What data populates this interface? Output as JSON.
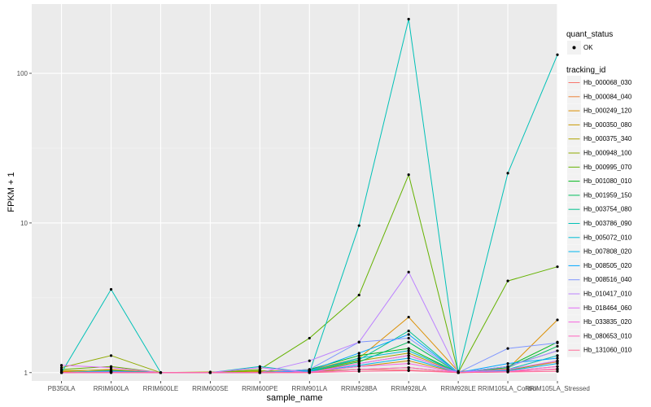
{
  "chart_data": {
    "type": "line",
    "y_scale": "log10",
    "ylim": [
      0.88,
      290
    ],
    "xlabel": "sample_name",
    "ylabel": "FPKM + 1",
    "y_ticks": [
      {
        "value": 1,
        "label": "1"
      },
      {
        "value": 10,
        "label": "10"
      },
      {
        "value": 100,
        "label": "100"
      }
    ],
    "categories": [
      "PB350LA",
      "RRIM600LA",
      "RRIM600LE",
      "RRIM600SE",
      "RRIM600PE",
      "RRIM901LA",
      "RRIM928BA",
      "RRIM928LA",
      "RRIM928LE",
      "RRIM105LA_Control",
      "RRIM105LA_Stressed"
    ],
    "legend": {
      "points_title": "quant_status",
      "points_label": "OK",
      "lines_title": "tracking_id"
    },
    "series": [
      {
        "name": "Hb_000068_030",
        "color": "#F8766D",
        "values": [
          1.0,
          1.01,
          1.0,
          1.0,
          1.0,
          1.01,
          1.05,
          1.04,
          1.0,
          1.02,
          1.05
        ]
      },
      {
        "name": "Hb_000084_040",
        "color": "#EC8239",
        "values": [
          1.01,
          1.02,
          1.0,
          1.0,
          1.0,
          1.02,
          1.15,
          1.3,
          1.0,
          1.04,
          1.18
        ]
      },
      {
        "name": "Hb_000249_120",
        "color": "#DB8E00",
        "values": [
          1.02,
          1.05,
          1.0,
          1.0,
          1.01,
          1.04,
          1.25,
          2.35,
          1.02,
          1.06,
          2.25
        ]
      },
      {
        "name": "Hb_000350_080",
        "color": "#C79800",
        "values": [
          1.0,
          1.01,
          1.0,
          1.0,
          1.0,
          1.01,
          1.1,
          1.2,
          1.0,
          1.02,
          1.1
        ]
      },
      {
        "name": "Hb_000375_340",
        "color": "#AEA200",
        "values": [
          1.03,
          1.04,
          1.0,
          1.01,
          1.02,
          1.03,
          1.2,
          1.35,
          1.0,
          1.05,
          1.3
        ]
      },
      {
        "name": "Hb_000948_100",
        "color": "#8FAA00",
        "values": [
          1.08,
          1.3,
          1.0,
          1.0,
          1.03,
          1.02,
          1.05,
          1.08,
          1.0,
          1.03,
          1.2
        ]
      },
      {
        "name": "Hb_000995_070",
        "color": "#64B200",
        "values": [
          1.05,
          1.1,
          1.0,
          1.0,
          1.05,
          1.7,
          3.3,
          21.0,
          1.0,
          4.1,
          5.1
        ]
      },
      {
        "name": "Hb_001080_010",
        "color": "#00B81B",
        "values": [
          1.0,
          1.02,
          1.0,
          1.0,
          1.0,
          1.05,
          1.3,
          1.45,
          1.0,
          1.1,
          1.6
        ]
      },
      {
        "name": "Hb_001959_150",
        "color": "#00BD5C",
        "values": [
          1.0,
          1.01,
          1.0,
          1.0,
          1.0,
          1.02,
          1.18,
          1.6,
          1.0,
          1.08,
          1.5
        ]
      },
      {
        "name": "Hb_003754_080",
        "color": "#00C08E",
        "values": [
          1.0,
          1.03,
          1.0,
          1.0,
          1.0,
          1.03,
          1.22,
          1.9,
          1.0,
          1.1,
          1.4
        ]
      },
      {
        "name": "Hb_003786_090",
        "color": "#00C1B7",
        "values": [
          1.0,
          3.6,
          1.0,
          1.0,
          1.1,
          1.0,
          9.6,
          230.0,
          1.0,
          21.5,
          133.0
        ]
      },
      {
        "name": "Hb_005072_010",
        "color": "#00BDD4",
        "values": [
          1.0,
          1.02,
          1.0,
          1.0,
          1.0,
          1.02,
          1.25,
          1.4,
          1.0,
          1.05,
          1.3
        ]
      },
      {
        "name": "Hb_007808_020",
        "color": "#00B5EE",
        "values": [
          1.0,
          1.01,
          1.0,
          1.0,
          1.0,
          1.01,
          1.12,
          1.25,
          1.0,
          1.03,
          1.15
        ]
      },
      {
        "name": "Hb_008505_020",
        "color": "#00A7FF",
        "values": [
          1.0,
          1.02,
          1.0,
          1.0,
          1.0,
          1.03,
          1.35,
          1.8,
          1.0,
          1.15,
          1.25
        ]
      },
      {
        "name": "Hb_008516_040",
        "color": "#7F96FF",
        "values": [
          1.0,
          1.01,
          1.0,
          1.0,
          1.0,
          1.05,
          1.6,
          1.7,
          1.0,
          1.45,
          1.58
        ]
      },
      {
        "name": "Hb_010417_010",
        "color": "#BC81FF",
        "values": [
          1.0,
          1.0,
          1.0,
          1.0,
          1.0,
          1.2,
          1.6,
          4.7,
          1.0,
          1.1,
          1.4
        ]
      },
      {
        "name": "Hb_018464_060",
        "color": "#E26EF7",
        "values": [
          1.12,
          1.08,
          1.0,
          1.0,
          1.08,
          1.0,
          1.15,
          1.3,
          1.0,
          1.05,
          1.2
        ]
      },
      {
        "name": "Hb_033835_020",
        "color": "#F863DF",
        "values": [
          1.0,
          1.01,
          1.0,
          1.0,
          1.0,
          1.01,
          1.1,
          1.15,
          1.0,
          1.02,
          1.1
        ]
      },
      {
        "name": "Hb_080653_010",
        "color": "#FF62BF",
        "values": [
          1.0,
          1.0,
          1.0,
          1.0,
          1.0,
          1.0,
          1.05,
          1.08,
          1.0,
          1.01,
          1.06
        ]
      },
      {
        "name": "Hb_131060_010",
        "color": "#FF6A98",
        "values": [
          1.0,
          1.0,
          1.0,
          1.0,
          1.0,
          1.0,
          1.02,
          1.03,
          1.0,
          1.01,
          1.02
        ]
      }
    ]
  }
}
